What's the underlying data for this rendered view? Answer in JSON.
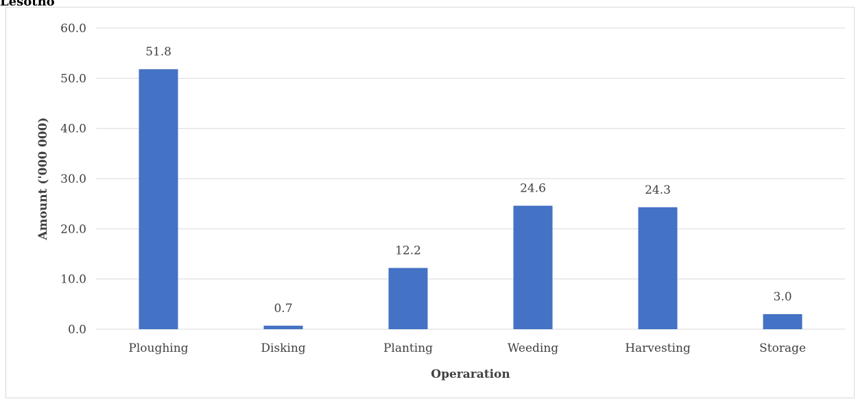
{
  "chart_data": {
    "type": "bar",
    "title": "Lesotho",
    "xlabel": "Operaration",
    "ylabel": "Amount ('000 000)",
    "categories": [
      "Ploughing",
      "Disking",
      "Planting",
      "Weeding",
      "Harvesting",
      "Storage"
    ],
    "values": [
      51.8,
      0.7,
      12.2,
      24.6,
      24.3,
      3.0
    ],
    "data_labels": [
      "51.8",
      "0.7",
      "12.2",
      "24.6",
      "24.3",
      "3.0"
    ],
    "yticks": [
      0,
      10,
      20,
      30,
      40,
      50,
      60
    ],
    "ytick_labels": [
      "0.0",
      "10.0",
      "20.0",
      "30.0",
      "40.0",
      "50.0",
      "60.0"
    ],
    "ylim": [
      0,
      60
    ],
    "grid": true,
    "legend": "none",
    "bar_color": "#4472C4"
  }
}
